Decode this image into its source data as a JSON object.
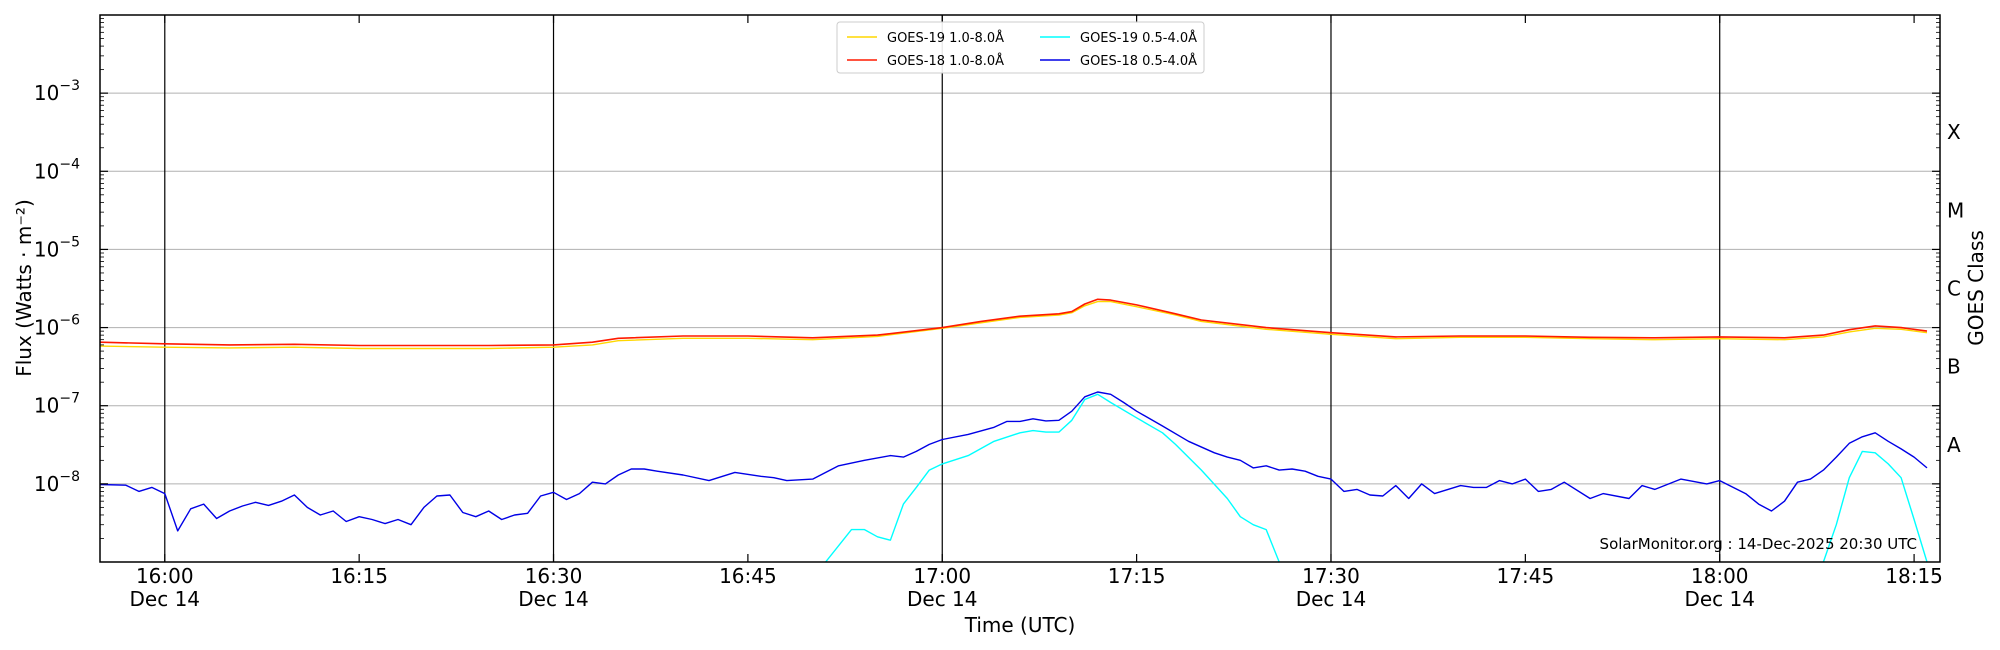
{
  "chart_data": {
    "type": "line",
    "xlabel": "Time (UTC)",
    "ylabel": "Flux (Watts · m⁻²)",
    "y2label": "GOES Class",
    "y_scale": "log",
    "xlim": [
      "15:55",
      "18:17"
    ],
    "ylim": [
      1e-09,
      0.01
    ],
    "grid": "horizontal",
    "legend_placement": "top-center",
    "watermark": "SolarMonitor.org : 14-Dec-2025 20:30 UTC",
    "x_ticks": [
      {
        "time": "16:00",
        "label": "16:00",
        "sublabel": "Dec 14",
        "vline": true
      },
      {
        "time": "16:15",
        "label": "16:15",
        "sublabel": "",
        "vline": false
      },
      {
        "time": "16:30",
        "label": "16:30",
        "sublabel": "Dec 14",
        "vline": true
      },
      {
        "time": "16:45",
        "label": "16:45",
        "sublabel": "",
        "vline": false
      },
      {
        "time": "17:00",
        "label": "17:00",
        "sublabel": "Dec 14",
        "vline": true
      },
      {
        "time": "17:15",
        "label": "17:15",
        "sublabel": "",
        "vline": false
      },
      {
        "time": "17:30",
        "label": "17:30",
        "sublabel": "Dec 14",
        "vline": true
      },
      {
        "time": "17:45",
        "label": "17:45",
        "sublabel": "",
        "vline": false
      },
      {
        "time": "18:00",
        "label": "18:00",
        "sublabel": "Dec 14",
        "vline": true
      },
      {
        "time": "18:15",
        "label": "18:15",
        "sublabel": "",
        "vline": false
      }
    ],
    "y_ticks": [
      {
        "exp": -8,
        "label_base": "10",
        "label_exp": "−8"
      },
      {
        "exp": -7,
        "label_base": "10",
        "label_exp": "−7"
      },
      {
        "exp": -6,
        "label_base": "10",
        "label_exp": "−6"
      },
      {
        "exp": -5,
        "label_base": "10",
        "label_exp": "−5"
      },
      {
        "exp": -4,
        "label_base": "10",
        "label_exp": "−4"
      },
      {
        "exp": -3,
        "label_base": "10",
        "label_exp": "−3"
      }
    ],
    "goes_classes": [
      {
        "label": "A",
        "exp": -7.5
      },
      {
        "label": "B",
        "exp": -6.5
      },
      {
        "label": "C",
        "exp": -5.5
      },
      {
        "label": "M",
        "exp": -4.5
      },
      {
        "label": "X",
        "exp": -3.5
      }
    ],
    "series": [
      {
        "name": "GOES-19 1.0-8.0Å",
        "color": "#FFD700",
        "width": 1.4,
        "points": [
          [
            "15:55",
            5.8e-07
          ],
          [
            "16:00",
            5.6e-07
          ],
          [
            "16:05",
            5.5e-07
          ],
          [
            "16:10",
            5.6e-07
          ],
          [
            "16:15",
            5.4e-07
          ],
          [
            "16:20",
            5.4e-07
          ],
          [
            "16:25",
            5.4e-07
          ],
          [
            "16:30",
            5.6e-07
          ],
          [
            "16:33",
            6e-07
          ],
          [
            "16:35",
            6.8e-07
          ],
          [
            "16:40",
            7.3e-07
          ],
          [
            "16:45",
            7.3e-07
          ],
          [
            "16:50",
            7e-07
          ],
          [
            "16:55",
            7.7e-07
          ],
          [
            "17:00",
            9.8e-07
          ],
          [
            "17:03",
            1.15e-06
          ],
          [
            "17:06",
            1.35e-06
          ],
          [
            "17:09",
            1.45e-06
          ],
          [
            "17:10",
            1.55e-06
          ],
          [
            "17:11",
            1.9e-06
          ],
          [
            "17:12",
            2.15e-06
          ],
          [
            "17:13",
            2.15e-06
          ],
          [
            "17:15",
            1.85e-06
          ],
          [
            "17:18",
            1.45e-06
          ],
          [
            "17:20",
            1.2e-06
          ],
          [
            "17:25",
            9.5e-07
          ],
          [
            "17:30",
            8.2e-07
          ],
          [
            "17:35",
            7.2e-07
          ],
          [
            "17:40",
            7.5e-07
          ],
          [
            "17:45",
            7.5e-07
          ],
          [
            "17:50",
            7.2e-07
          ],
          [
            "17:55",
            7e-07
          ],
          [
            "18:00",
            7.2e-07
          ],
          [
            "18:05",
            7e-07
          ],
          [
            "18:08",
            7.6e-07
          ],
          [
            "18:10",
            8.8e-07
          ],
          [
            "18:12",
            9.8e-07
          ],
          [
            "18:14",
            9.5e-07
          ],
          [
            "18:16",
            8.6e-07
          ]
        ]
      },
      {
        "name": "GOES-18 1.0-8.0Å",
        "color": "#FF1A00",
        "width": 1.6,
        "points": [
          [
            "15:55",
            6.5e-07
          ],
          [
            "16:00",
            6.2e-07
          ],
          [
            "16:05",
            6e-07
          ],
          [
            "16:10",
            6.1e-07
          ],
          [
            "16:15",
            5.9e-07
          ],
          [
            "16:20",
            5.9e-07
          ],
          [
            "16:25",
            5.9e-07
          ],
          [
            "16:30",
            6e-07
          ],
          [
            "16:33",
            6.5e-07
          ],
          [
            "16:35",
            7.3e-07
          ],
          [
            "16:40",
            7.8e-07
          ],
          [
            "16:45",
            7.8e-07
          ],
          [
            "16:50",
            7.4e-07
          ],
          [
            "16:55",
            8e-07
          ],
          [
            "17:00",
            1e-06
          ],
          [
            "17:03",
            1.2e-06
          ],
          [
            "17:06",
            1.4e-06
          ],
          [
            "17:09",
            1.5e-06
          ],
          [
            "17:10",
            1.6e-06
          ],
          [
            "17:11",
            2e-06
          ],
          [
            "17:12",
            2.3e-06
          ],
          [
            "17:13",
            2.25e-06
          ],
          [
            "17:15",
            1.95e-06
          ],
          [
            "17:18",
            1.5e-06
          ],
          [
            "17:20",
            1.25e-06
          ],
          [
            "17:25",
            1e-06
          ],
          [
            "17:30",
            8.6e-07
          ],
          [
            "17:35",
            7.6e-07
          ],
          [
            "17:40",
            7.8e-07
          ],
          [
            "17:45",
            7.8e-07
          ],
          [
            "17:50",
            7.5e-07
          ],
          [
            "17:55",
            7.4e-07
          ],
          [
            "18:00",
            7.6e-07
          ],
          [
            "18:05",
            7.4e-07
          ],
          [
            "18:08",
            8e-07
          ],
          [
            "18:10",
            9.4e-07
          ],
          [
            "18:12",
            1.05e-06
          ],
          [
            "18:14",
            1e-06
          ],
          [
            "18:16",
            9e-07
          ]
        ]
      },
      {
        "name": "GOES-19 0.5-4.0Å",
        "color": "#00FFFF",
        "width": 1.4,
        "points": [
          [
            "16:51",
            1e-09
          ],
          [
            "16:53",
            2.6e-09
          ],
          [
            "16:54",
            2.6e-09
          ],
          [
            "16:55",
            2.1e-09
          ],
          [
            "16:56",
            1.9e-09
          ],
          [
            "16:57",
            5.5e-09
          ],
          [
            "16:58",
            9e-09
          ],
          [
            "16:59",
            1.5e-08
          ],
          [
            "17:00",
            1.8e-08
          ],
          [
            "17:02",
            2.3e-08
          ],
          [
            "17:04",
            3.5e-08
          ],
          [
            "17:06",
            4.5e-08
          ],
          [
            "17:07",
            4.8e-08
          ],
          [
            "17:08",
            4.6e-08
          ],
          [
            "17:09",
            4.6e-08
          ],
          [
            "17:10",
            6.5e-08
          ],
          [
            "17:11",
            1.2e-07
          ],
          [
            "17:12",
            1.4e-07
          ],
          [
            "17:13",
            1.1e-07
          ],
          [
            "17:15",
            7e-08
          ],
          [
            "17:17",
            4.5e-08
          ],
          [
            "17:18",
            3.2e-08
          ],
          [
            "17:20",
            1.5e-08
          ],
          [
            "17:22",
            6.5e-09
          ],
          [
            "17:23",
            3.8e-09
          ],
          [
            "17:24",
            3e-09
          ],
          [
            "17:25",
            2.6e-09
          ],
          [
            "17:26",
            1e-09
          ],
          [
            null,
            null
          ],
          [
            "18:08",
            1e-09
          ],
          [
            "18:09",
            3e-09
          ],
          [
            "18:10",
            1.2e-08
          ],
          [
            "18:11",
            2.6e-08
          ],
          [
            "18:12",
            2.5e-08
          ],
          [
            "18:13",
            1.8e-08
          ],
          [
            "18:14",
            1.2e-08
          ],
          [
            "18:15",
            3.5e-09
          ],
          [
            "18:16",
            1e-09
          ]
        ]
      },
      {
        "name": "GOES-18 0.5-4.0Å",
        "color": "#0000E6",
        "width": 1.4,
        "points": [
          [
            "15:55",
            9.8e-09
          ],
          [
            "15:57",
            9.6e-09
          ],
          [
            "15:58",
            8e-09
          ],
          [
            "15:59",
            9e-09
          ],
          [
            "16:00",
            7.5e-09
          ],
          [
            "16:01",
            2.5e-09
          ],
          [
            "16:02",
            4.8e-09
          ],
          [
            "16:03",
            5.5e-09
          ],
          [
            "16:04",
            3.6e-09
          ],
          [
            "16:05",
            4.5e-09
          ],
          [
            "16:06",
            5.2e-09
          ],
          [
            "16:07",
            5.8e-09
          ],
          [
            "16:08",
            5.3e-09
          ],
          [
            "16:09",
            6e-09
          ],
          [
            "16:10",
            7.2e-09
          ],
          [
            "16:11",
            5e-09
          ],
          [
            "16:12",
            4e-09
          ],
          [
            "16:13",
            4.5e-09
          ],
          [
            "16:14",
            3.3e-09
          ],
          [
            "16:15",
            3.8e-09
          ],
          [
            "16:16",
            3.5e-09
          ],
          [
            "16:17",
            3.1e-09
          ],
          [
            "16:18",
            3.5e-09
          ],
          [
            "16:19",
            3e-09
          ],
          [
            "16:20",
            5e-09
          ],
          [
            "16:21",
            7e-09
          ],
          [
            "16:22",
            7.2e-09
          ],
          [
            "16:23",
            4.3e-09
          ],
          [
            "16:24",
            3.8e-09
          ],
          [
            "16:25",
            4.5e-09
          ],
          [
            "16:26",
            3.5e-09
          ],
          [
            "16:27",
            4e-09
          ],
          [
            "16:28",
            4.2e-09
          ],
          [
            "16:29",
            7e-09
          ],
          [
            "16:30",
            7.8e-09
          ],
          [
            "16:31",
            6.3e-09
          ],
          [
            "16:32",
            7.5e-09
          ],
          [
            "16:33",
            1.05e-08
          ],
          [
            "16:34",
            1e-08
          ],
          [
            "16:35",
            1.3e-08
          ],
          [
            "16:36",
            1.55e-08
          ],
          [
            "16:37",
            1.55e-08
          ],
          [
            "16:38",
            1.45e-08
          ],
          [
            "16:40",
            1.3e-08
          ],
          [
            "16:42",
            1.1e-08
          ],
          [
            "16:44",
            1.4e-08
          ],
          [
            "16:46",
            1.25e-08
          ],
          [
            "16:47",
            1.2e-08
          ],
          [
            "16:48",
            1.1e-08
          ],
          [
            "16:50",
            1.15e-08
          ],
          [
            "16:52",
            1.7e-08
          ],
          [
            "16:54",
            2e-08
          ],
          [
            "16:56",
            2.3e-08
          ],
          [
            "16:57",
            2.2e-08
          ],
          [
            "16:58",
            2.6e-08
          ],
          [
            "16:59",
            3.2e-08
          ],
          [
            "17:00",
            3.7e-08
          ],
          [
            "17:02",
            4.3e-08
          ],
          [
            "17:04",
            5.3e-08
          ],
          [
            "17:05",
            6.3e-08
          ],
          [
            "17:06",
            6.3e-08
          ],
          [
            "17:07",
            6.8e-08
          ],
          [
            "17:08",
            6.4e-08
          ],
          [
            "17:09",
            6.5e-08
          ],
          [
            "17:10",
            8.5e-08
          ],
          [
            "17:11",
            1.3e-07
          ],
          [
            "17:12",
            1.5e-07
          ],
          [
            "17:13",
            1.4e-07
          ],
          [
            "17:14",
            1.1e-07
          ],
          [
            "17:15",
            8.5e-08
          ],
          [
            "17:17",
            5.5e-08
          ],
          [
            "17:19",
            3.5e-08
          ],
          [
            "17:21",
            2.5e-08
          ],
          [
            "17:22",
            2.2e-08
          ],
          [
            "17:23",
            2e-08
          ],
          [
            "17:24",
            1.6e-08
          ],
          [
            "17:25",
            1.7e-08
          ],
          [
            "17:26",
            1.5e-08
          ],
          [
            "17:27",
            1.55e-08
          ],
          [
            "17:28",
            1.45e-08
          ],
          [
            "17:29",
            1.25e-08
          ],
          [
            "17:30",
            1.15e-08
          ],
          [
            "17:31",
            8e-09
          ],
          [
            "17:32",
            8.5e-09
          ],
          [
            "17:33",
            7.2e-09
          ],
          [
            "17:34",
            7e-09
          ],
          [
            "17:35",
            9.5e-09
          ],
          [
            "17:36",
            6.5e-09
          ],
          [
            "17:37",
            1e-08
          ],
          [
            "17:38",
            7.5e-09
          ],
          [
            "17:40",
            9.5e-09
          ],
          [
            "17:41",
            9e-09
          ],
          [
            "17:42",
            9e-09
          ],
          [
            "17:43",
            1.1e-08
          ],
          [
            "17:44",
            1e-08
          ],
          [
            "17:45",
            1.15e-08
          ],
          [
            "17:46",
            8e-09
          ],
          [
            "17:47",
            8.5e-09
          ],
          [
            "17:48",
            1.05e-08
          ],
          [
            "17:50",
            6.5e-09
          ],
          [
            "17:51",
            7.5e-09
          ],
          [
            "17:53",
            6.5e-09
          ],
          [
            "17:54",
            9.5e-09
          ],
          [
            "17:55",
            8.5e-09
          ],
          [
            "17:57",
            1.15e-08
          ],
          [
            "17:59",
            1e-08
          ],
          [
            "18:00",
            1.1e-08
          ],
          [
            "18:02",
            7.5e-09
          ],
          [
            "18:03",
            5.5e-09
          ],
          [
            "18:04",
            4.5e-09
          ],
          [
            "18:05",
            6e-09
          ],
          [
            "18:06",
            1.05e-08
          ],
          [
            "18:07",
            1.15e-08
          ],
          [
            "18:08",
            1.5e-08
          ],
          [
            "18:09",
            2.2e-08
          ],
          [
            "18:10",
            3.3e-08
          ],
          [
            "18:11",
            4e-08
          ],
          [
            "18:12",
            4.5e-08
          ],
          [
            "18:13",
            3.5e-08
          ],
          [
            "18:14",
            2.8e-08
          ],
          [
            "18:15",
            2.2e-08
          ],
          [
            "18:16",
            1.6e-08
          ]
        ]
      }
    ]
  }
}
